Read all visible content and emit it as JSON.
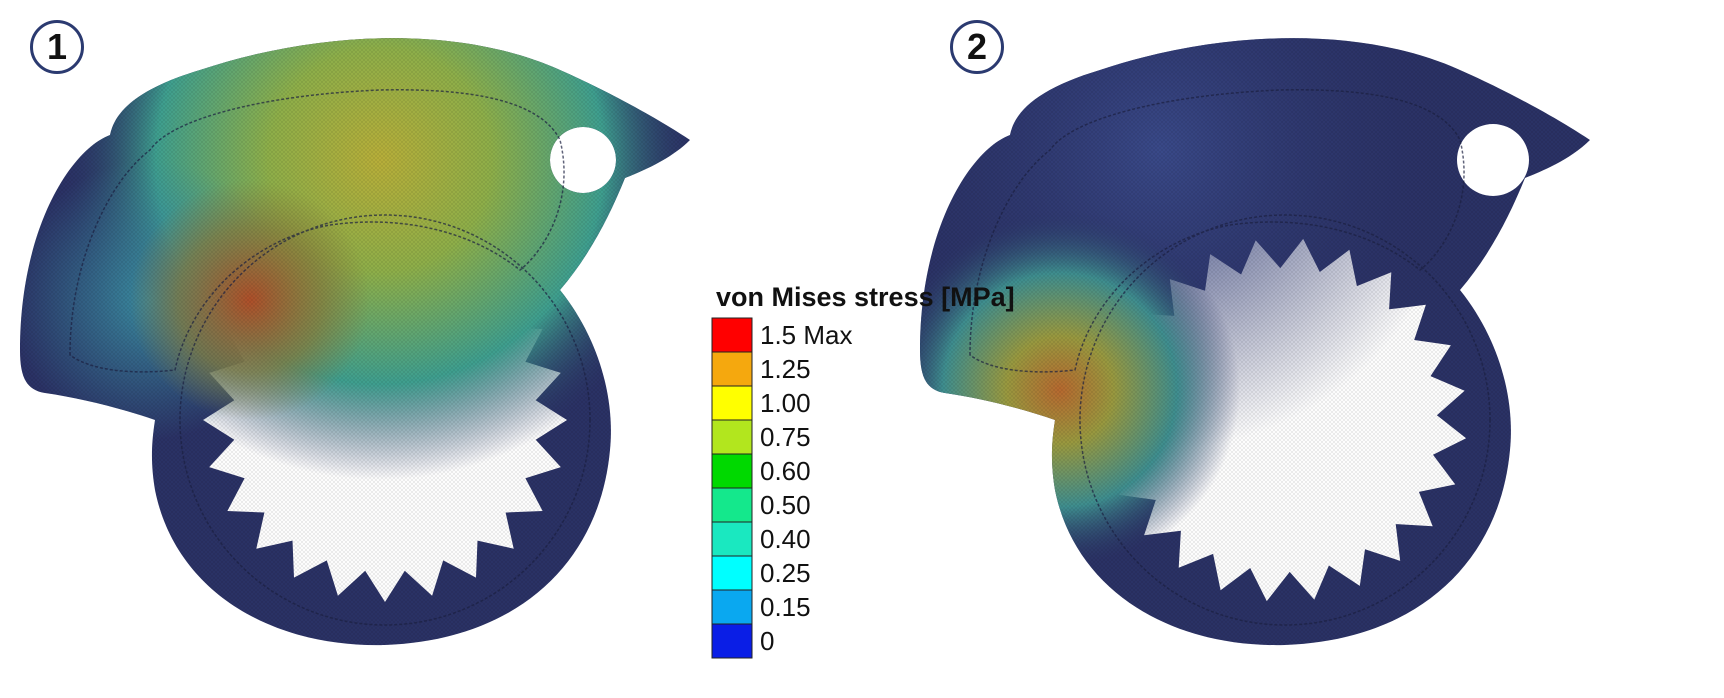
{
  "panels": [
    {
      "label": "1"
    },
    {
      "label": "2"
    }
  ],
  "legend": {
    "title": "von Mises stress [MPa]",
    "entries": [
      {
        "label": "1.5 Max",
        "color": "#ff0000"
      },
      {
        "label": "1.25",
        "color": "#f5a80e"
      },
      {
        "label": "1.00",
        "color": "#ffff00"
      },
      {
        "label": "0.75",
        "color": "#b2e61e"
      },
      {
        "label": "0.60",
        "color": "#00d900"
      },
      {
        "label": "0.50",
        "color": "#14e88c"
      },
      {
        "label": "0.40",
        "color": "#1ae8c0"
      },
      {
        "label": "0.25",
        "color": "#00ffff"
      },
      {
        "label": "0.15",
        "color": "#0aa8f0"
      },
      {
        "label": "0",
        "color": "#0a1ee6"
      }
    ]
  },
  "colors": {
    "part_base": "#2b3266",
    "badge_border": "#2b3a70"
  }
}
